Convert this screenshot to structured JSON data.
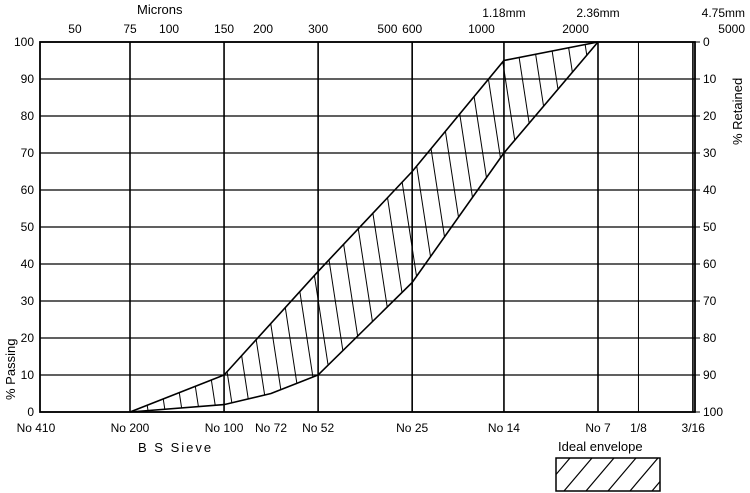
{
  "chart_data": {
    "type": "area",
    "title": "",
    "top_axis_title": "Microns",
    "bottom_axis_title": "B S Sieve",
    "ylabel_left": "% Passing",
    "ylabel_right": "% Retained",
    "ylim": [
      0,
      100
    ],
    "x_scale": "log",
    "xlim_microns": [
      37.5,
      5000
    ],
    "grid": true,
    "top_ticks": [
      {
        "micron": 50,
        "label": "50"
      },
      {
        "micron": 75,
        "label": "75"
      },
      {
        "micron": 100,
        "label": "100"
      },
      {
        "micron": 150,
        "label": "150"
      },
      {
        "micron": 200,
        "label": "200"
      },
      {
        "micron": 300,
        "label": "300"
      },
      {
        "micron": 500,
        "label": "500"
      },
      {
        "micron": 600,
        "label": "600"
      },
      {
        "micron": 1000,
        "label": "1000"
      },
      {
        "micron": 1180,
        "label": "1.18mm"
      },
      {
        "micron": 2000,
        "label": "2000"
      },
      {
        "micron": 2360,
        "label": "2.36mm"
      },
      {
        "micron": 4750,
        "label": "4.75mm"
      },
      {
        "micron": 5000,
        "label": "5000"
      }
    ],
    "bottom_ticks": [
      {
        "micron": 37.5,
        "label": "No 410"
      },
      {
        "micron": 75,
        "label": "No 200"
      },
      {
        "micron": 150,
        "label": "No 100"
      },
      {
        "micron": 212,
        "label": "No 72"
      },
      {
        "micron": 300,
        "label": "No 52"
      },
      {
        "micron": 600,
        "label": "No 25"
      },
      {
        "micron": 1180,
        "label": "No 14"
      },
      {
        "micron": 2360,
        "label": "No 7"
      },
      {
        "micron": 3180,
        "label": "1/8"
      },
      {
        "micron": 4760,
        "label": "3/16"
      }
    ],
    "major_vertical_lines_micron": [
      75,
      150,
      300,
      600,
      1180,
      2360,
      4750
    ],
    "minor_vertical_lines_micron": [
      3180
    ],
    "y_ticks_left": [
      0,
      10,
      20,
      30,
      40,
      50,
      60,
      70,
      80,
      90,
      100
    ],
    "y_ticks_right": [
      100,
      90,
      80,
      70,
      60,
      50,
      40,
      30,
      20,
      10,
      0
    ],
    "series": [
      {
        "name": "",
        "points": [
          [
            75,
            0
          ],
          [
            150,
            10
          ],
          [
            300,
            38
          ],
          [
            600,
            65
          ],
          [
            1180,
            95
          ],
          [
            2360,
            100
          ]
        ]
      },
      {
        "name": "",
        "points": [
          [
            75,
            0
          ],
          [
            150,
            2
          ],
          [
            212,
            5
          ],
          [
            300,
            10
          ],
          [
            600,
            35
          ],
          [
            1180,
            70
          ],
          [
            2360,
            100
          ]
        ]
      }
    ],
    "legend": {
      "label": "Ideal envelope",
      "position": "bottom-right"
    }
  }
}
